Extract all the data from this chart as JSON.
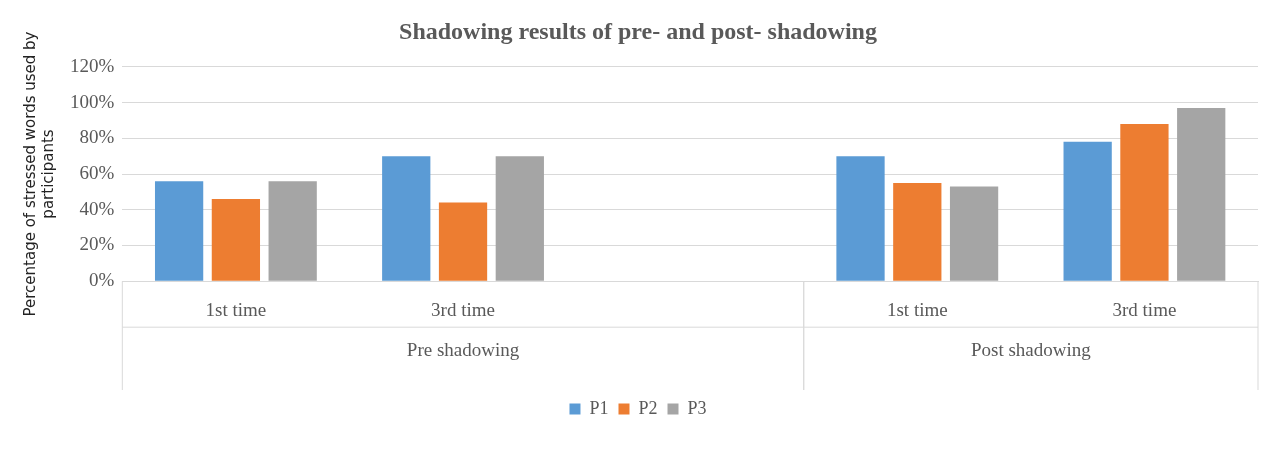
{
  "chart_data": {
    "type": "bar",
    "title": "Shadowing results of pre- and post- shadowing",
    "ylabel": "Percentage of stressed words used by participants",
    "categories": [
      "1st time",
      "3rd time",
      null,
      "1st time",
      "3rd time"
    ],
    "annotations": [
      "Pre shadowing",
      "Post shadowing"
    ],
    "series": [
      {
        "name": "P1",
        "color": "#5b9bd5",
        "values": [
          56,
          70,
          null,
          70,
          78
        ]
      },
      {
        "name": "P2",
        "color": "#ed7d31",
        "values": [
          46,
          44,
          null,
          55,
          88
        ]
      },
      {
        "name": "P3",
        "color": "#a5a5a5",
        "values": [
          56,
          70,
          null,
          53,
          97
        ]
      }
    ],
    "ylim": [
      0,
      120
    ],
    "yticks": [
      {
        "value": 0,
        "label": "0%"
      },
      {
        "value": 20,
        "label": "20%"
      },
      {
        "value": 40,
        "label": "40%"
      },
      {
        "value": 60,
        "label": "60%"
      },
      {
        "value": 80,
        "label": "80%"
      },
      {
        "value": 100,
        "label": "100%"
      },
      {
        "value": 120,
        "label": "120%"
      }
    ],
    "grid": "y",
    "legend": "bottom"
  }
}
